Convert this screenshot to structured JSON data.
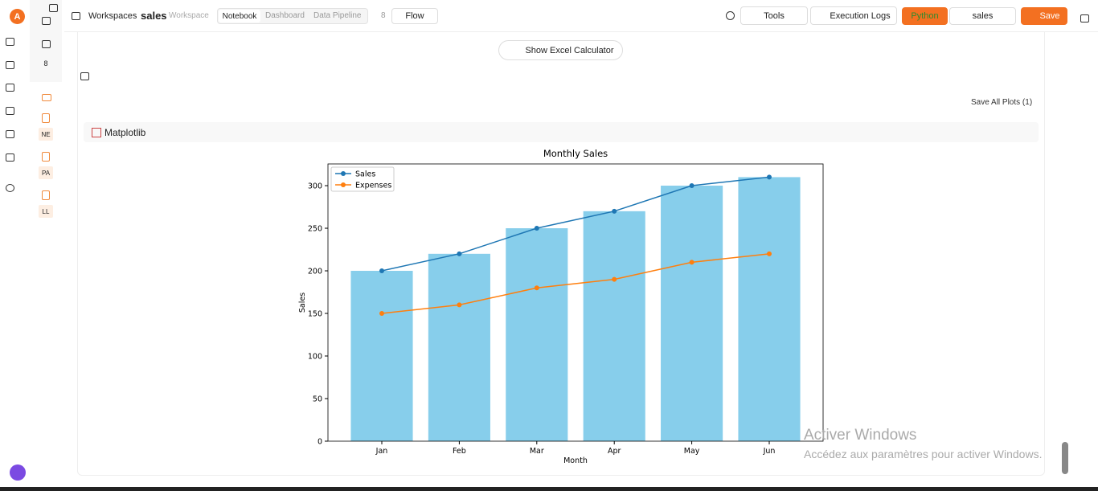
{
  "app": {
    "logo": "A",
    "side_count": "8",
    "files": [
      "NE",
      "PA",
      "LL"
    ]
  },
  "header": {
    "breadcrumb": "Workspaces",
    "name": "sales",
    "kind": "Workspace",
    "tabs": [
      "Notebook",
      "Dashboard",
      "Data Pipeline"
    ],
    "db_count": "8",
    "flow": "Flow",
    "tools": "Tools",
    "logs": "Execution Logs",
    "runtime": "Python",
    "folder": "sales",
    "save": "Save"
  },
  "toolbar": {
    "excel": "Show Excel Calculator",
    "save_plots": "Save All Plots (1)",
    "output_label": "Matplotlib"
  },
  "watermark": {
    "title": "Activer Windows",
    "text": "Accédez aux paramètres pour activer Windows."
  },
  "chart_data": {
    "type": "combo",
    "title": "Monthly Sales",
    "x_label": "Month",
    "y_label": "Sales",
    "categories": [
      "Jan",
      "Feb",
      "Mar",
      "Apr",
      "May",
      "Jun"
    ],
    "series": [
      {
        "name": "Sales",
        "color": "#1f77b4",
        "bar_color": "#87ceeb",
        "values": [
          200,
          220,
          250,
          270,
          300,
          310
        ]
      },
      {
        "name": "Expenses",
        "color": "#ff7f0e",
        "values": [
          150,
          160,
          180,
          190,
          210,
          220
        ]
      }
    ],
    "ylim": [
      0,
      325.5
    ],
    "yticks": [
      0,
      50,
      100,
      150,
      200,
      250,
      300
    ],
    "legend": "upper left"
  }
}
